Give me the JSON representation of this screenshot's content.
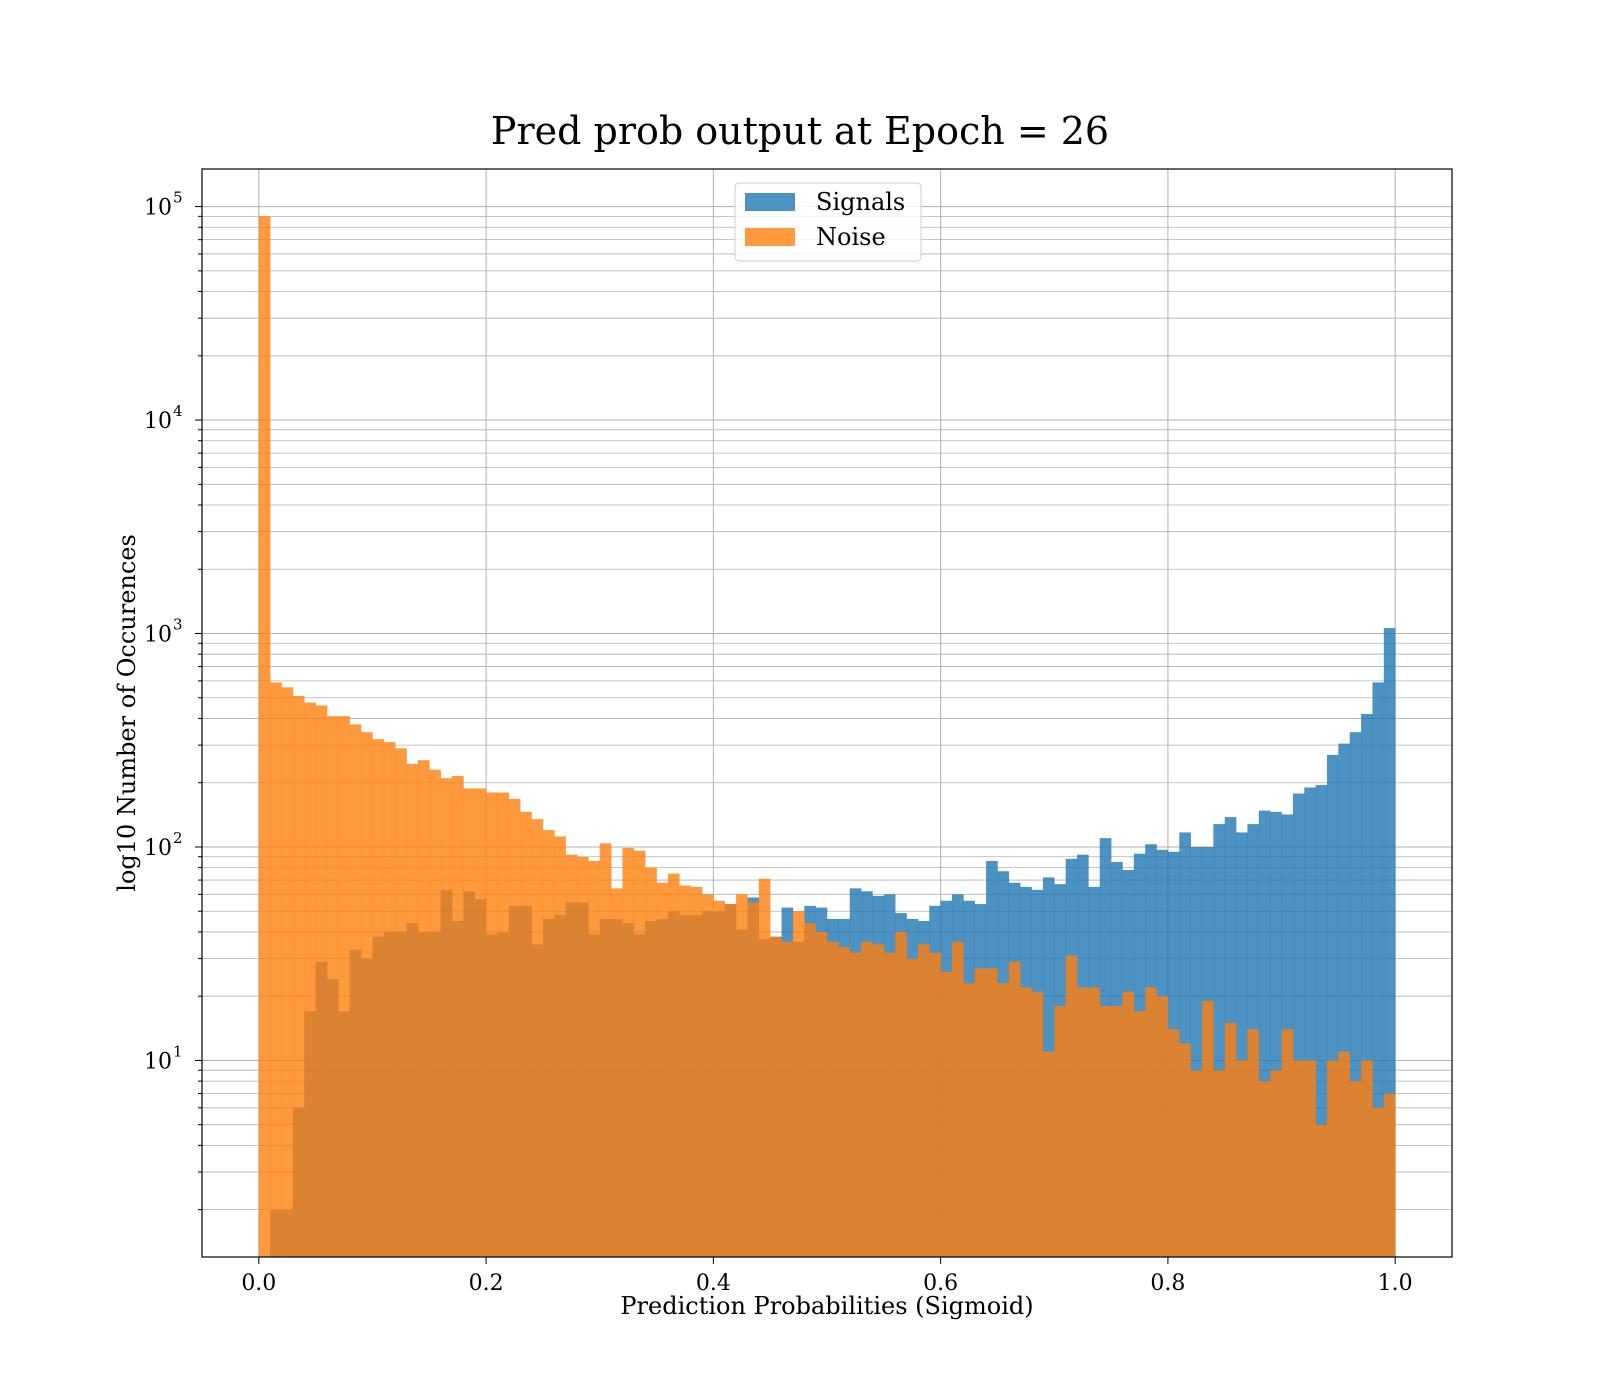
{
  "chart_data": {
    "type": "bar",
    "subtype": "overlapping-histogram",
    "title": "Pred prob output at Epoch = 26",
    "xlabel": "Prediction Probabilities (Sigmoid)",
    "ylabel": "log10 Number of Occurences",
    "xlim": [
      -0.05,
      1.05
    ],
    "ylim": [
      1.2,
      150000
    ],
    "yscale": "log",
    "xticks": [
      0.0,
      0.2,
      0.4,
      0.6,
      0.8,
      1.0
    ],
    "xtick_labels": [
      "0.0",
      "0.2",
      "0.4",
      "0.6",
      "0.8",
      "1.0"
    ],
    "yticks": [
      {
        "value": 10,
        "base": "10",
        "exp": "1"
      },
      {
        "value": 100,
        "base": "10",
        "exp": "2"
      },
      {
        "value": 1000,
        "base": "10",
        "exp": "3"
      },
      {
        "value": 10000,
        "base": "10",
        "exp": "4"
      },
      {
        "value": 100000,
        "base": "10",
        "exp": "5"
      }
    ],
    "grid": true,
    "legend_position": "upper center",
    "bins": 100,
    "bin_range": [
      0.0,
      1.0
    ],
    "series": [
      {
        "name": "Signals",
        "color": "#1f77b4",
        "values": [
          0,
          2,
          2,
          6,
          17,
          29,
          24,
          17,
          33,
          30,
          38,
          40,
          40,
          44,
          40,
          40,
          63,
          45,
          62,
          57,
          39,
          40,
          53,
          53,
          35,
          46,
          48,
          55,
          55,
          39,
          46,
          46,
          44,
          39,
          45,
          46,
          50,
          48,
          48,
          50,
          50,
          54,
          41,
          58,
          37,
          38,
          52,
          36,
          53,
          52,
          46,
          46,
          64,
          62,
          59,
          60,
          49,
          46,
          45,
          53,
          56,
          60,
          56,
          54,
          86,
          77,
          68,
          65,
          63,
          72,
          67,
          88,
          92,
          65,
          110,
          85,
          78,
          93,
          103,
          97,
          95,
          117,
          100,
          100,
          128,
          138,
          117,
          128,
          148,
          146,
          142,
          178,
          190,
          195,
          270,
          305,
          345,
          420,
          590,
          1060
        ]
      },
      {
        "name": "Noise",
        "color": "#ff7f0e",
        "values": [
          90000,
          590,
          560,
          510,
          475,
          460,
          410,
          410,
          375,
          345,
          320,
          310,
          290,
          245,
          255,
          230,
          210,
          215,
          188,
          188,
          180,
          180,
          168,
          146,
          135,
          120,
          112,
          92,
          90,
          86,
          104,
          64,
          99,
          96,
          80,
          68,
          75,
          66,
          65,
          60,
          56,
          54,
          60,
          55,
          71,
          38,
          36,
          50,
          44,
          40,
          36,
          34,
          32,
          36,
          35,
          32,
          40,
          30,
          35,
          32,
          26,
          36,
          23,
          27,
          27,
          23,
          29,
          22,
          21,
          11,
          18,
          31,
          22,
          22,
          18,
          18,
          21,
          17,
          22,
          20,
          14,
          12,
          9,
          19,
          9,
          15,
          10,
          14,
          8,
          9,
          14,
          10,
          10,
          5,
          10,
          11,
          8,
          10,
          6,
          7
        ]
      }
    ]
  }
}
